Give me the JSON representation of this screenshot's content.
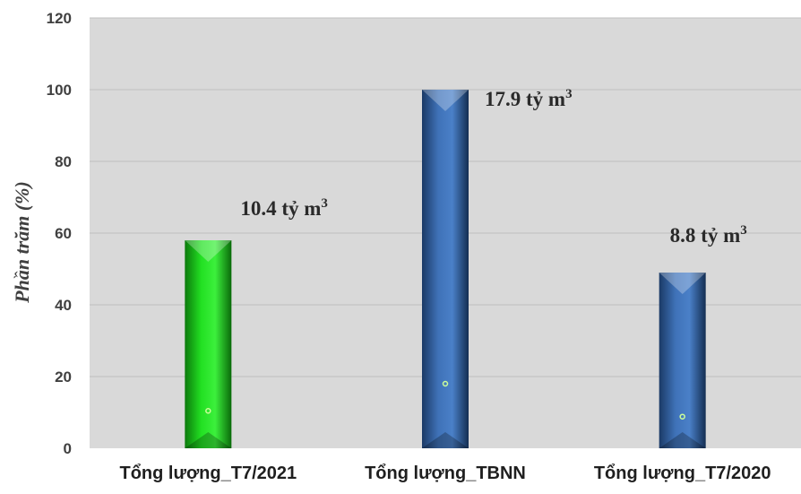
{
  "chart_data": {
    "type": "bar",
    "title": "",
    "xlabel": "",
    "ylabel": "Phần trăm (%)",
    "ylim": [
      0,
      120
    ],
    "yticks": [
      0,
      20,
      40,
      60,
      80,
      100,
      120
    ],
    "grid": true,
    "legend": "none",
    "categories": [
      "Tổng lượng_T7/2021",
      "Tổng lượng_TBNN",
      "Tổng lượng_T7/2020"
    ],
    "values": [
      58,
      100,
      49
    ],
    "data_labels": [
      {
        "text": "10.4 tỷ m",
        "sup": "3"
      },
      {
        "text": "17.9 tỷ m",
        "sup": "3"
      },
      {
        "text": "8.8 tỷ m",
        "sup": "3"
      }
    ],
    "colors": [
      "#22e022",
      "#3f72b8",
      "#3f72b8"
    ],
    "plot_background": "#d9d9d9",
    "gridline_color": "#bfbfbf"
  }
}
